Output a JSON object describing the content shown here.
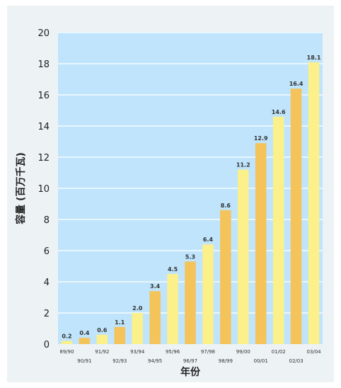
{
  "colors": {
    "panel": "#edf2f5",
    "plot_bg": "#bfe4fb",
    "grid": "#e8f6ff",
    "bar_yellow": "#fbf08a",
    "bar_orange": "#f4c35a"
  },
  "chart_data": {
    "type": "bar",
    "title": "",
    "xlabel": "年份",
    "ylabel": "容量 (百万千瓦)",
    "ylim": [
      0,
      20
    ],
    "y_ticks": [
      0,
      2,
      4,
      6,
      8,
      10,
      12,
      14,
      16,
      18,
      20
    ],
    "grid": true,
    "categories": [
      "89/90",
      "90/91",
      "91/92",
      "92/93",
      "93/94",
      "94/95",
      "95/96",
      "96/97",
      "97/98",
      "98/99",
      "99/00",
      "00/01",
      "01/02",
      "02/03",
      "03/04"
    ],
    "values": [
      0.2,
      0.4,
      0.6,
      1.1,
      2.0,
      3.4,
      4.5,
      5.3,
      6.4,
      8.6,
      11.2,
      12.9,
      14.6,
      16.4,
      18.1
    ],
    "value_labels": [
      "0.2",
      "0.4",
      "0.6",
      "1.1",
      "2.0",
      "3.4",
      "4.5",
      "5.3",
      "6.4",
      "8.6",
      "11.2",
      "12.9",
      "14.6",
      "16.4",
      "18.1"
    ]
  }
}
